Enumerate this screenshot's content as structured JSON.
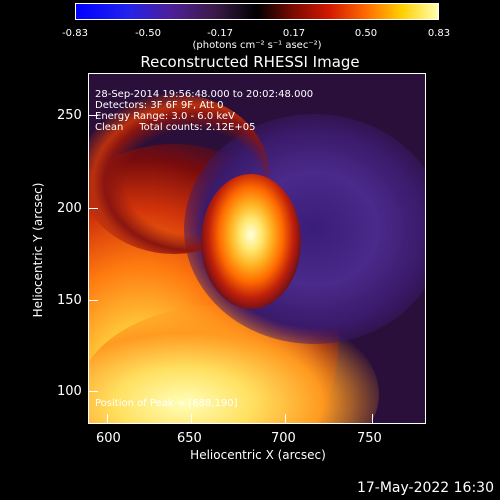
{
  "colorbar": {
    "ticks": [
      "-0.83",
      "-0.50",
      "-0.17",
      "0.17",
      "0.50",
      "0.83"
    ],
    "units": "(photons cm⁻² s⁻¹ asec⁻²)"
  },
  "plot": {
    "title": "Reconstructed RHESSI Image",
    "xlabel": "Heliocentric X (arcsec)",
    "ylabel": "Heliocentric Y (arcsec)",
    "x_ticks": [
      "600",
      "650",
      "700",
      "750"
    ],
    "y_ticks": [
      "250",
      "200",
      "150",
      "100"
    ],
    "info": {
      "time_range": "28-Sep-2014 19:56:48.000 to 20:02:48.000",
      "detectors": "Detectors: 3F 6F 9F, Att 0",
      "energy": "Energy Range: 3.0 - 6.0 keV",
      "clean": "Clean     Total counts: 2.12E+05",
      "peak": "Position of Peak = [688,190]"
    }
  },
  "footer": {
    "timestamp": "17-May-2022 16:30"
  },
  "colors": {
    "background": "#000000",
    "text": "#ffffff",
    "plot_bg": "#2a0f3a"
  }
}
